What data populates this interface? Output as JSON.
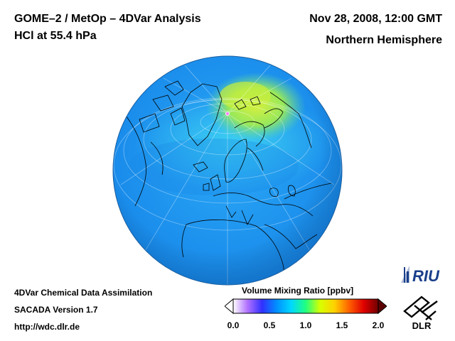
{
  "header": {
    "title_line1": "GOME–2 / MetOp – 4DVar Analysis",
    "title_line2": "HCl at 55.4 hPa",
    "date": "Nov 28, 2008, 12:00 GMT",
    "region": "Northern Hemisphere"
  },
  "footer": {
    "line1": "4DVar Chemical Data Assimilation",
    "line2": "SACADA Version 1.7",
    "line3": "http://wdc.dlr.de"
  },
  "colorbar": {
    "title": "Volume Mixing Ratio [ppbv]",
    "ticks": [
      {
        "label": "0.0",
        "value": 0.0
      },
      {
        "label": "0.5",
        "value": 0.5
      },
      {
        "label": "1.0",
        "value": 1.0
      },
      {
        "label": "1.5",
        "value": 1.5
      },
      {
        "label": "2.0",
        "value": 2.0
      }
    ],
    "range": [
      0.0,
      2.0
    ],
    "colors": [
      "#ffffff",
      "#b070ff",
      "#3030ff",
      "#0090ff",
      "#00d8ff",
      "#20ff80",
      "#d8ff00",
      "#ffd000",
      "#ff6000",
      "#e00000",
      "#700000"
    ]
  },
  "logos": {
    "riu": "RIU",
    "dlr": "DLR"
  },
  "map": {
    "projection": "orthographic",
    "hemisphere": "Northern Hemisphere",
    "background_color": "#1a9df0",
    "high_color": "#c8ee3c"
  }
}
